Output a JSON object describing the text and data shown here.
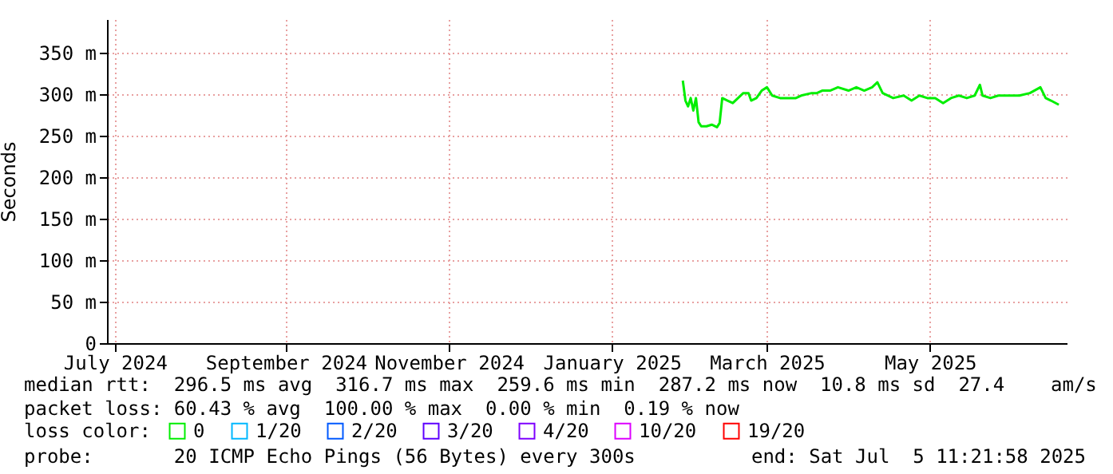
{
  "chart_data": {
    "type": "line",
    "ylabel": "Seconds",
    "legend_title": "loss color:",
    "legend": "bottom",
    "grid": true,
    "marker": "none",
    "line_style": "solid",
    "xlim": [
      "2024-07-05",
      "2025-07-05"
    ],
    "xticks": [
      {
        "value": "2024-07-08",
        "label": "July 2024"
      },
      {
        "value": "2024-09-11",
        "label": "September 2024"
      },
      {
        "value": "2024-11-12",
        "label": "November 2024"
      },
      {
        "value": "2025-01-13",
        "label": "January 2025"
      },
      {
        "value": "2025-03-13",
        "label": "March 2025"
      },
      {
        "value": "2025-05-14",
        "label": "May 2025"
      }
    ],
    "ylim": [
      0,
      390
    ],
    "yticks": [
      0,
      {
        "value": 50,
        "label": "50 m"
      },
      {
        "value": 100,
        "label": "100 m"
      },
      {
        "value": 150,
        "label": "150 m"
      },
      {
        "value": 200,
        "label": "200 m"
      },
      {
        "value": 250,
        "label": "250 m"
      },
      {
        "value": 300,
        "label": "300 m"
      },
      {
        "value": 350,
        "label": "350 m"
      }
    ],
    "series": [
      {
        "name": "0",
        "color": "#00ee00",
        "x": [
          "2025-02-09",
          "2025-02-10",
          "2025-02-11",
          "2025-02-12",
          "2025-02-13",
          "2025-02-14",
          "2025-02-15",
          "2025-02-16",
          "2025-02-18",
          "2025-02-20",
          "2025-02-22",
          "2025-02-23",
          "2025-02-24",
          "2025-02-26",
          "2025-02-28",
          "2025-03-02",
          "2025-03-04",
          "2025-03-06",
          "2025-03-07",
          "2025-03-09",
          "2025-03-11",
          "2025-03-13",
          "2025-03-15",
          "2025-03-18",
          "2025-03-22",
          "2025-03-24",
          "2025-03-26",
          "2025-03-30",
          "2025-04-01",
          "2025-04-03",
          "2025-04-06",
          "2025-04-09",
          "2025-04-13",
          "2025-04-16",
          "2025-04-19",
          "2025-04-22",
          "2025-04-24",
          "2025-04-26",
          "2025-04-30",
          "2025-05-04",
          "2025-05-07",
          "2025-05-10",
          "2025-05-13",
          "2025-05-16",
          "2025-05-19",
          "2025-05-22",
          "2025-05-25",
          "2025-05-28",
          "2025-05-31",
          "2025-06-02",
          "2025-06-03",
          "2025-06-06",
          "2025-06-09",
          "2025-06-13",
          "2025-06-17",
          "2025-06-21",
          "2025-06-25",
          "2025-06-27",
          "2025-06-29",
          "2025-07-02"
        ],
        "values": [
          316,
          292,
          285,
          295,
          280,
          295,
          266,
          261,
          261,
          263,
          260,
          265,
          295,
          292,
          289,
          295,
          301,
          301,
          292,
          295,
          304,
          308,
          298,
          295,
          295,
          295,
          298,
          301,
          301,
          304,
          304,
          308,
          304,
          308,
          304,
          308,
          314,
          301,
          295,
          298,
          292,
          298,
          295,
          295,
          289,
          295,
          298,
          295,
          298,
          311,
          298,
          295,
          298,
          298,
          298,
          301,
          308,
          295,
          292,
          287
        ]
      },
      {
        "name": "1/20",
        "color": "#00b8ff"
      },
      {
        "name": "2/20",
        "color": "#0059ff"
      },
      {
        "name": "3/20",
        "color": "#5e00ff"
      },
      {
        "name": "4/20",
        "color": "#7e00ff"
      },
      {
        "name": "10/20",
        "color": "#dd00ff"
      },
      {
        "name": "19/20",
        "color": "#ff0000"
      }
    ],
    "annotations": [
      "median rtt:  296.5 ms avg  316.7 ms max  259.6 ms min  287.2 ms now  10.8 ms sd  27.4    am/s",
      "packet loss: 60.43 % avg  100.00 % max  0.00 % min  0.19 % now",
      "probe:       20 ICMP Echo Pings (56 Bytes) every 300s",
      "end: Sat Jul  5 11:21:58 2025"
    ]
  }
}
